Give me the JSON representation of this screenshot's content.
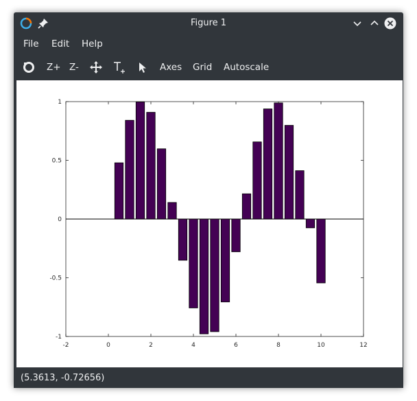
{
  "window": {
    "title": "Figure 1"
  },
  "menu": {
    "file": "File",
    "edit": "Edit",
    "help": "Help"
  },
  "toolbar": {
    "zoom_in": "Z+",
    "zoom_out": "Z-",
    "axes": "Axes",
    "grid": "Grid",
    "autoscale": "Autoscale"
  },
  "status": {
    "coords": "(5.3613, -0.72656)"
  },
  "colors": {
    "bar": "#440154",
    "chrome": "#31363b"
  },
  "chart_data": {
    "type": "bar",
    "x": [
      0.5,
      1.0,
      1.5,
      2.0,
      2.5,
      3.0,
      3.5,
      4.0,
      4.5,
      5.0,
      5.5,
      6.0,
      6.5,
      7.0,
      7.5,
      8.0,
      8.5,
      9.0,
      9.5,
      10.0
    ],
    "values": [
      0.479,
      0.841,
      0.997,
      0.909,
      0.598,
      0.141,
      -0.351,
      -0.757,
      -0.978,
      -0.959,
      -0.706,
      -0.279,
      0.215,
      0.657,
      0.938,
      0.989,
      0.798,
      0.412,
      -0.075,
      -0.544
    ],
    "xlim": [
      -2,
      12
    ],
    "ylim": [
      -1,
      1
    ],
    "xticks": [
      "-2",
      "0",
      "2",
      "4",
      "6",
      "8",
      "10",
      "12"
    ],
    "yticks": [
      "-1",
      "-0.5",
      "0",
      "0.5",
      "1"
    ],
    "grid": false
  }
}
